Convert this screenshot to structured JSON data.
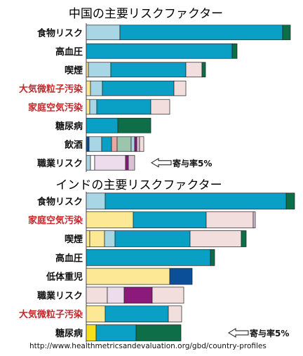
{
  "footer_url": "http://www.healthmetricsandevaluation.org/gbd/country-profiles",
  "colors": {
    "light_blue": "#a9d6e5",
    "teal": "#0a9fc5",
    "dark_green": "#0e6e47",
    "pink": "#f2dedd",
    "light_pink": "#ecdcec",
    "yellow": "#fde995",
    "bright_yellow": "#f6e01c",
    "navy": "#0a4f97",
    "salmon": "#e9a6a2",
    "sage": "#9cc5ad",
    "purple": "#8b1a7b",
    "grey_pink": "#d9c2d4",
    "white": "#ffffff",
    "label_black": "#111111",
    "label_red": "#c0282a"
  },
  "chart_data": [
    {
      "type": "bar",
      "orientation": "horizontal",
      "stacked": true,
      "title": "中国の主要リスクファクター",
      "categories": [
        "食物リスク",
        "高血圧",
        "喫煙",
        "大気微粒子汚染",
        "家庭空気汚染",
        "糖尿病",
        "飲酒",
        "職業リスク"
      ],
      "label_colors": [
        "label_black",
        "label_black",
        "label_black",
        "label_red",
        "label_red",
        "label_black",
        "label_black",
        "label_black"
      ],
      "rows": [
        [
          [
            "light_blue",
            48
          ],
          [
            "teal",
            232
          ],
          [
            "dark_green",
            11
          ]
        ],
        [
          [
            "teal",
            208
          ],
          [
            "dark_green",
            7
          ]
        ],
        [
          [
            "yellow",
            3
          ],
          [
            "light_blue",
            32
          ],
          [
            "teal",
            107
          ],
          [
            "pink",
            23
          ],
          [
            "dark_green",
            5
          ]
        ],
        [
          [
            "yellow",
            6
          ],
          [
            "light_blue",
            17
          ],
          [
            "teal",
            102
          ],
          [
            "pink",
            17
          ]
        ],
        [
          [
            "yellow",
            5
          ],
          [
            "light_blue",
            10
          ],
          [
            "teal",
            77
          ],
          [
            "pink",
            27
          ]
        ],
        [
          [
            "teal",
            45
          ],
          [
            "dark_green",
            47
          ]
        ],
        [
          [
            "navy",
            4
          ],
          [
            "light_blue",
            18
          ],
          [
            "teal",
            14
          ],
          [
            "salmon",
            8
          ],
          [
            "sage",
            20
          ],
          [
            "light_blue",
            5
          ],
          [
            "purple",
            3
          ],
          [
            "grey_pink",
            4
          ],
          [
            "pink",
            6
          ]
        ],
        [
          [
            "light_blue",
            6
          ],
          [
            "white",
            6
          ],
          [
            "light_pink",
            44
          ],
          [
            "purple",
            4
          ],
          [
            "grey_pink",
            9
          ]
        ]
      ],
      "annotation": "寄与率5%",
      "annotation_value": 5
    },
    {
      "type": "bar",
      "orientation": "horizontal",
      "stacked": true,
      "title": "インドの主要リスクファクター",
      "categories": [
        "食物リスク",
        "家庭空気汚染",
        "喫煙",
        "高血圧",
        "低体重児",
        "職業リスク",
        "大気微粒子汚染",
        "糖尿病"
      ],
      "label_colors": [
        "label_black",
        "label_red",
        "label_black",
        "label_black",
        "label_black",
        "label_black",
        "label_red",
        "label_black"
      ],
      "rows": [
        [
          [
            "light_blue",
            27
          ],
          [
            "teal",
            258
          ],
          [
            "dark_green",
            12
          ]
        ],
        [
          [
            "yellow",
            67
          ],
          [
            "teal",
            104
          ],
          [
            "pink",
            67
          ],
          [
            "grey_pink",
            3
          ]
        ],
        [
          [
            "yellow",
            5
          ],
          [
            "yellow",
            21
          ],
          [
            "light_blue",
            15
          ],
          [
            "teal",
            107
          ],
          [
            "pink",
            73
          ],
          [
            "dark_green",
            7
          ]
        ],
        [
          [
            "teal",
            177
          ],
          [
            "dark_green",
            6
          ]
        ],
        [
          [
            "yellow",
            119
          ],
          [
            "navy",
            32
          ]
        ],
        [
          [
            "pink",
            30
          ],
          [
            "light_pink",
            24
          ],
          [
            "purple",
            40
          ],
          [
            "pink",
            45
          ]
        ],
        [
          [
            "yellow",
            27
          ],
          [
            "teal",
            90
          ],
          [
            "pink",
            19
          ]
        ],
        [
          [
            "bright_yellow",
            14
          ],
          [
            "teal",
            57
          ],
          [
            "dark_green",
            64
          ]
        ]
      ],
      "annotation": "寄与率5%",
      "annotation_value": 5
    }
  ]
}
